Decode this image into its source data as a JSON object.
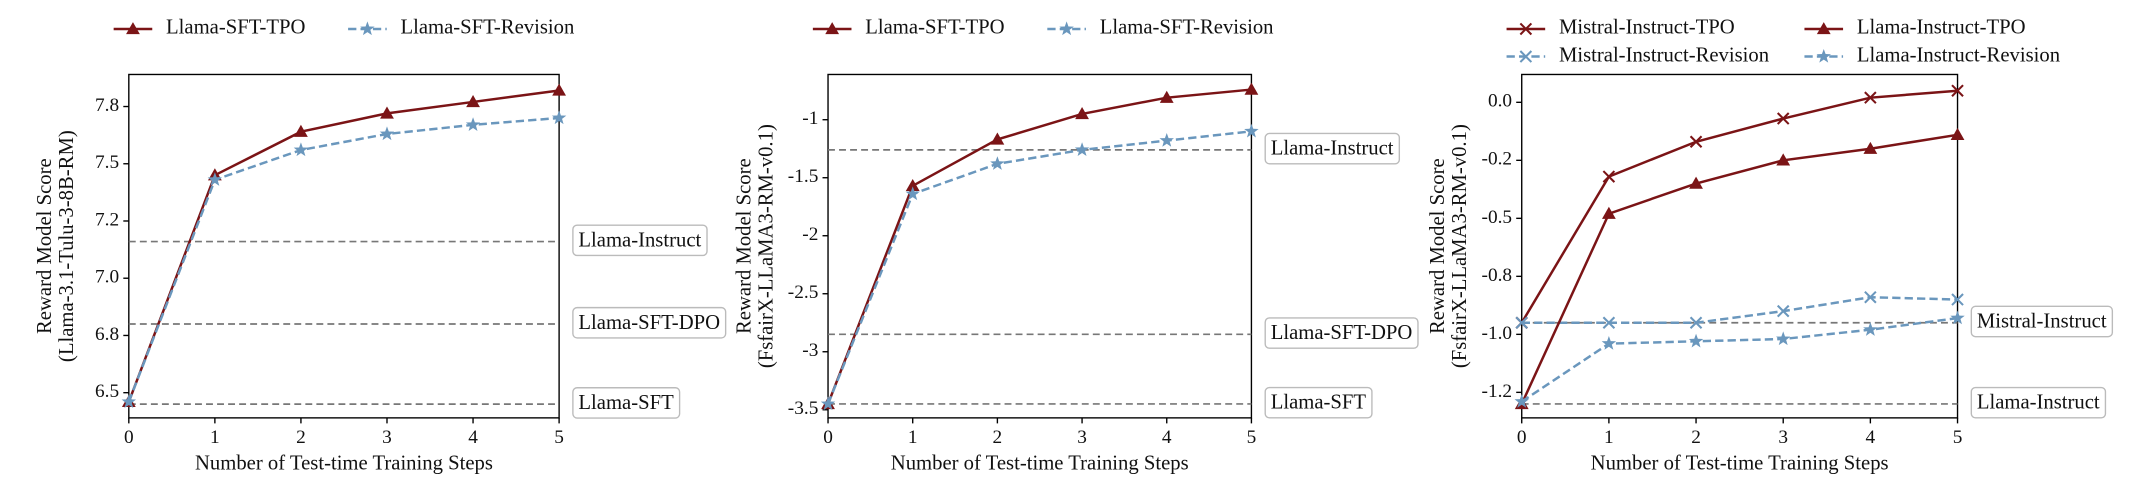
{
  "chart_data": [
    {
      "type": "line",
      "x": [
        0,
        1,
        2,
        3,
        4,
        5
      ],
      "xlim": [
        0,
        5
      ],
      "xticks": [
        0,
        1,
        2,
        3,
        4,
        5
      ],
      "xlabel": "Number of Test-time Training Steps",
      "ylabel": [
        "Reward Model Score",
        "(Llama-3.1-Tulu-3-8B-RM)"
      ],
      "ylim": [
        6.39,
        7.89
      ],
      "yticks": [
        {
          "value": 6.5,
          "label": "6.5"
        },
        {
          "value": 6.75,
          "label": "6.8"
        },
        {
          "value": 7.0,
          "label": "7.0"
        },
        {
          "value": 7.25,
          "label": "7.2"
        },
        {
          "value": 7.5,
          "label": "7.5"
        },
        {
          "value": 7.75,
          "label": "7.8"
        }
      ],
      "series": [
        {
          "name": "Llama-SFT-TPO",
          "color": "#7b1416",
          "marker": "^",
          "linestyle": "-",
          "values": [
            6.46,
            7.45,
            7.64,
            7.72,
            7.77,
            7.82
          ]
        },
        {
          "name": "Llama-SFT-Revision",
          "color": "#6a97bd",
          "marker": "*",
          "linestyle": "--",
          "values": [
            6.46,
            7.43,
            7.56,
            7.63,
            7.67,
            7.7
          ]
        }
      ],
      "reference_lines": [
        {
          "label": "Llama-Instruct",
          "value": 7.16
        },
        {
          "label": "Llama-SFT-DPO",
          "value": 6.8
        },
        {
          "label": "Llama-SFT",
          "value": 6.45
        }
      ]
    },
    {
      "type": "line",
      "x": [
        0,
        1,
        2,
        3,
        4,
        5
      ],
      "xlim": [
        0,
        5
      ],
      "xticks": [
        0,
        1,
        2,
        3,
        4,
        5
      ],
      "xlabel": "Number of Test-time Training Steps",
      "ylabel": [
        "Reward Model Score",
        "(FsfairX-LLaMA3-RM-v0.1)"
      ],
      "ylim": [
        -3.57,
        -0.61
      ],
      "yticks": [
        -3.5,
        -3.0,
        -2.5,
        -2.0,
        -1.5,
        -1.0
      ],
      "series": [
        {
          "name": "Llama-SFT-TPO",
          "color": "#7b1416",
          "marker": "^",
          "linestyle": "-",
          "values": [
            -3.45,
            -1.57,
            -1.17,
            -0.95,
            -0.81,
            -0.74
          ]
        },
        {
          "name": "Llama-SFT-Revision",
          "color": "#6a97bd",
          "marker": "*",
          "linestyle": "--",
          "values": [
            -3.45,
            -1.64,
            -1.38,
            -1.26,
            -1.18,
            -1.1
          ]
        }
      ],
      "reference_lines": [
        {
          "label": "Llama-Instruct",
          "value": -1.26
        },
        {
          "label": "Llama-SFT-DPO",
          "value": -2.85
        },
        {
          "label": "Llama-SFT",
          "value": -3.45
        }
      ]
    },
    {
      "type": "line",
      "x": [
        0,
        1,
        2,
        3,
        4,
        5
      ],
      "xlim": [
        0,
        5
      ],
      "xticks": [
        0,
        1,
        2,
        3,
        4,
        5
      ],
      "xlabel": "Number of Test-time Training Steps",
      "ylabel": [
        "Reward Model Score",
        "(FsfairX-LLaMA3-RM-v0.1)"
      ],
      "ylim": [
        -1.36,
        0.12
      ],
      "yticks": [
        {
          "value": -1.25,
          "label": "-1.2"
        },
        {
          "value": -1.0,
          "label": "-1.0"
        },
        {
          "value": -0.75,
          "label": "-0.8"
        },
        {
          "value": -0.5,
          "label": "-0.5"
        },
        {
          "value": -0.25,
          "label": "-0.2"
        },
        {
          "value": 0.0,
          "label": "0.0"
        }
      ],
      "series": [
        {
          "name": "Mistral-Instruct-TPO",
          "color": "#7b1416",
          "marker": "x",
          "linestyle": "-",
          "values": [
            -0.95,
            -0.32,
            -0.17,
            -0.07,
            0.02,
            0.05
          ]
        },
        {
          "name": "Mistral-Instruct-Revision",
          "color": "#6a97bd",
          "marker": "x",
          "linestyle": "--",
          "values": [
            -0.95,
            -0.95,
            -0.95,
            -0.9,
            -0.84,
            -0.85
          ]
        },
        {
          "name": "Llama-Instruct-TPO",
          "color": "#7b1416",
          "marker": "^",
          "linestyle": "-",
          "values": [
            -1.3,
            -0.48,
            -0.35,
            -0.25,
            -0.2,
            -0.14
          ]
        },
        {
          "name": "Llama-Instruct-Revision",
          "color": "#6a97bd",
          "marker": "*",
          "linestyle": "--",
          "values": [
            -1.29,
            -1.04,
            -1.03,
            -1.02,
            -0.98,
            -0.93
          ]
        }
      ],
      "reference_lines": [
        {
          "label": "Mistral-Instruct",
          "value": -0.95
        },
        {
          "label": "Llama-Instruct",
          "value": -1.3
        }
      ]
    }
  ]
}
